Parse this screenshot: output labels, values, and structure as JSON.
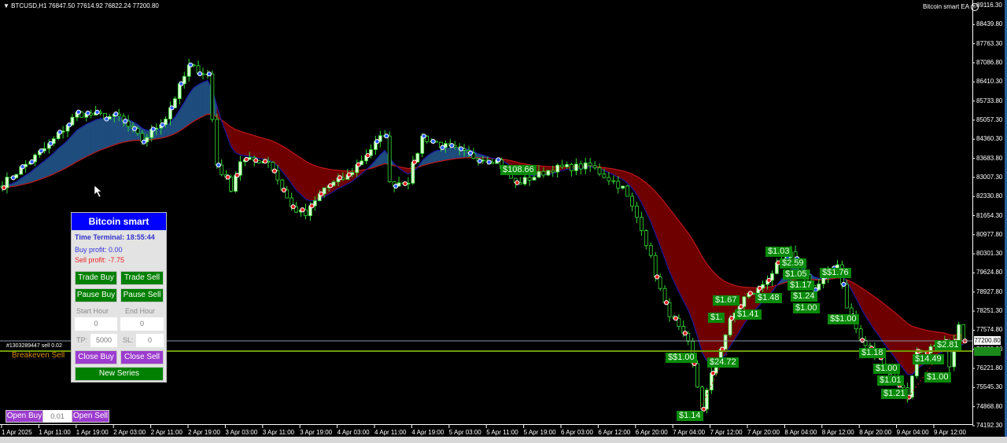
{
  "header": {
    "symbol_line": "BTCUSD,H1  76847.50 77614.92 76822.24 77200.80",
    "ea_name": "Bitcoin smart EA",
    "ea_icon": "smiley-icon"
  },
  "price_axis": {
    "labels": [
      "89116.30",
      "88439.80",
      "87763.30",
      "87086.80",
      "86410.30",
      "85733.80",
      "85057.30",
      "84360.30",
      "83683.80",
      "83007.30",
      "82330.80",
      "81654.30",
      "80977.80",
      "80301.30",
      "79624.80",
      "78927.80",
      "78251.30",
      "77574.80",
      "76898.30",
      "76221.80",
      "75545.30",
      "74868.80",
      "74192.30"
    ],
    "current_price": "77200.80",
    "max": 89116.3,
    "min": 74192.3
  },
  "time_axis": {
    "labels": [
      "1 Apr 2025",
      "1 Apr 11:00",
      "1 Apr 19:00",
      "2 Apr 03:00",
      "2 Apr 11:00",
      "2 Apr 19:00",
      "3 Apr 03:00",
      "3 Apr 11:00",
      "3 Apr 19:00",
      "4 Apr 03:00",
      "4 Apr 11:00",
      "4 Apr 19:00",
      "5 Apr 03:00",
      "5 Apr 11:00",
      "5 Apr 19:00",
      "6 Apr 03:00",
      "6 Apr 12:00",
      "6 Apr 20:00",
      "7 Apr 04:00",
      "7 Apr 12:00",
      "7 Apr 20:00",
      "8 Apr 04:00",
      "8 Apr 12:00",
      "8 Apr 20:00",
      "9 Apr 04:00",
      "9 Apr 12:00"
    ]
  },
  "price_path": [
    [
      "04-01 00:00",
      82774
    ],
    [
      "04-01 10:00",
      84165
    ],
    [
      "04-01 16:00",
      85278
    ],
    [
      "04-02 01:00",
      85138
    ],
    [
      "04-02 06:00",
      84304
    ],
    [
      "04-02 11:00",
      85138
    ],
    [
      "04-02 16:00",
      86946
    ],
    [
      "04-02 20:00",
      86668
    ],
    [
      "04-02 22:00",
      83469
    ],
    [
      "04-03 01:00",
      82635
    ],
    [
      "04-03 03:00",
      83608
    ],
    [
      "04-03 09:00",
      83608
    ],
    [
      "04-03 14:00",
      81939
    ],
    [
      "04-03 17:00",
      81661
    ],
    [
      "04-03 21:00",
      82635
    ],
    [
      "04-04 02:00",
      83052
    ],
    [
      "04-04 07:00",
      84026
    ],
    [
      "04-04 10:00",
      84582
    ],
    [
      "04-04 11:00",
      82774
    ],
    [
      "04-04 15:00",
      82913
    ],
    [
      "04-04 18:00",
      84443
    ],
    [
      "04-04 22:00",
      84165
    ],
    [
      "04-05 05:00",
      83747
    ],
    [
      "04-05 10:00",
      83608
    ],
    [
      "04-05 14:00",
      82774
    ],
    [
      "04-05 22:00",
      83330
    ],
    [
      "04-06 06:00",
      83413
    ],
    [
      "04-06 13:00",
      82635
    ],
    [
      "04-06 17:00",
      81244
    ],
    [
      "04-06 22:00",
      78462
    ],
    [
      "04-07 03:00",
      77071
    ],
    [
      "04-07 06:00",
      74846
    ],
    [
      "04-07 09:00",
      76515
    ],
    [
      "04-07 12:00",
      77906
    ],
    [
      "04-07 15:00",
      78740
    ],
    [
      "04-07 18:00",
      79019
    ],
    [
      "04-07 22:00",
      79853
    ],
    [
      "04-08 01:00",
      80270
    ],
    [
      "04-08 06:00",
      79019
    ],
    [
      "04-08 11:00",
      79992
    ],
    [
      "04-08 13:00",
      78462
    ],
    [
      "04-08 16:00",
      77210
    ],
    [
      "04-08 21:00",
      76376
    ],
    [
      "04-09 02:00",
      75263
    ],
    [
      "04-09 04:00",
      76793
    ],
    [
      "04-09 10:00",
      77071
    ],
    [
      "04-09 11:00",
      76237
    ],
    [
      "04-09 13:00",
      77906
    ],
    [
      "04-09 14:00",
      77200.8
    ]
  ],
  "colors": {
    "background": "#000000",
    "candle": "#33dd33",
    "fast_ma": "#1a1aa0",
    "slow_ma": "#c01818",
    "bull_fill": "#1e4c7c",
    "bear_fill": "#6e0000",
    "profit_label": "#0a8a0a",
    "panel_header": "#0000ff",
    "button_green": "#008000",
    "button_purple": "#9c3ccf"
  },
  "profit_labels": [
    "$108.66",
    "$$1.00",
    "$24.72",
    "$1.14",
    "$1.67",
    "$1.",
    "$1.41",
    "$1.48",
    "$1.03",
    "$2.59",
    "$1.05",
    "$1.17",
    "$1.24",
    "$1.00",
    "$$1.76",
    "$$1.00",
    "$1.18",
    "$1.00",
    "$1.01",
    "$1.21",
    "$14.49",
    "$1.00",
    "$2.81"
  ],
  "order_line": {
    "label": "#1303289447 sell 0.02",
    "breakeven_label": "Breakeven Sell"
  },
  "panel": {
    "title": "Bitcoin smart",
    "time_terminal": "Time Terminal: 18:55:44",
    "buy_profit": "Buy profit: 0.00",
    "sell_profit": "Sell profit: -7.75",
    "trade_buy": "Trade Buy",
    "trade_sell": "Trade Sell",
    "pause_buy": "Pause Buy",
    "pause_sell": "Pause Sell",
    "start_hour_label": "Start Hour",
    "end_hour_label": "End Hour",
    "start_hour": "0",
    "end_hour": "0",
    "tp_label": "TP:",
    "tp": "5000",
    "sl_label": "SL:",
    "sl": "0",
    "close_buy": "Close Buy",
    "close_sell": "Close Sell",
    "new_series": "New Series"
  },
  "quick": {
    "open_buy": "Open Buy",
    "lot": "0.01",
    "open_sell": "Open Sell"
  }
}
